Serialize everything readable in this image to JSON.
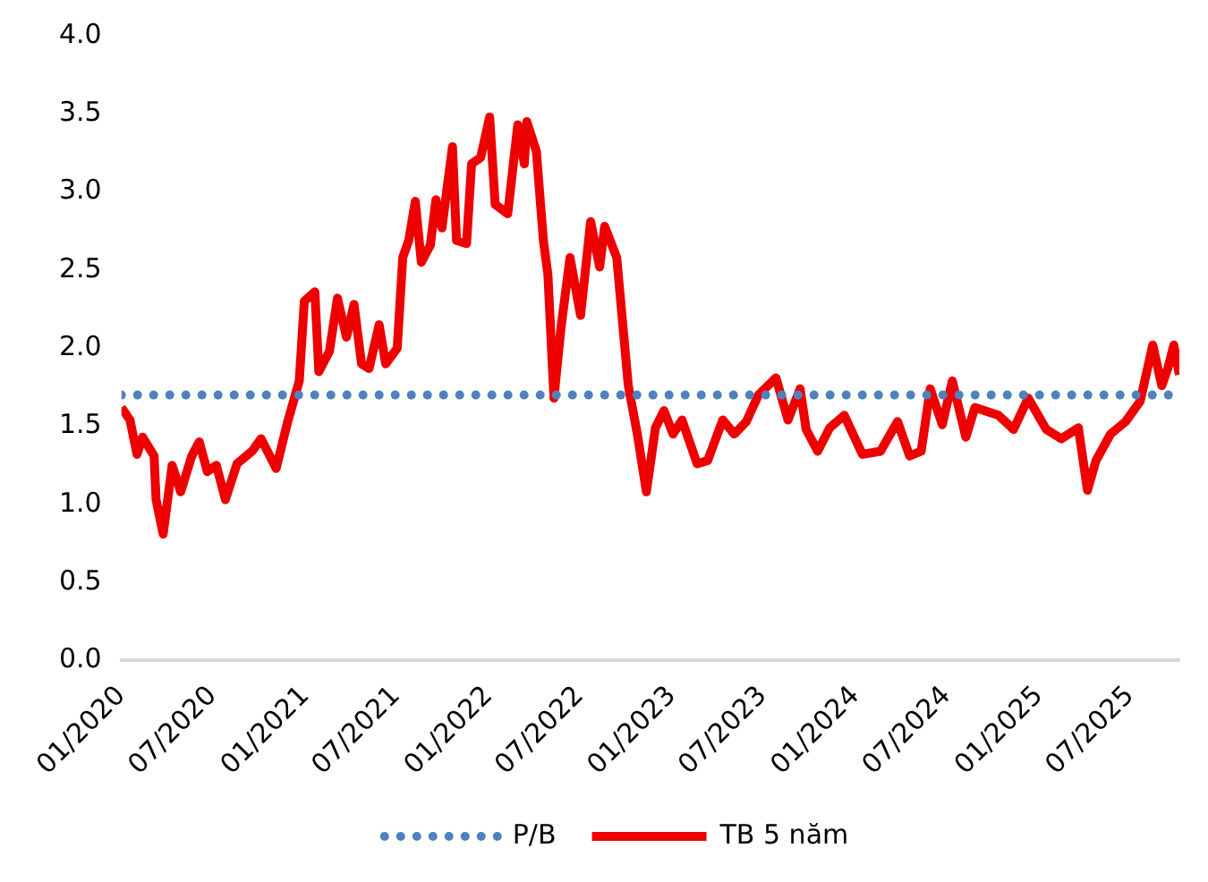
{
  "chart_data": {
    "type": "line",
    "xlim": [
      "2020-01",
      "2025-10-07"
    ],
    "xticks": [
      {
        "value": "2020-01",
        "label": "01/2020"
      },
      {
        "value": "2020-07",
        "label": "07/2020"
      },
      {
        "value": "2021-01",
        "label": "01/2021"
      },
      {
        "value": "2021-07",
        "label": "07/2021"
      },
      {
        "value": "2022-01",
        "label": "01/2022"
      },
      {
        "value": "2022-07",
        "label": "07/2022"
      },
      {
        "value": "2023-01",
        "label": "01/2023"
      },
      {
        "value": "2023-07",
        "label": "07/2023"
      },
      {
        "value": "2024-01",
        "label": "01/2024"
      },
      {
        "value": "2024-07",
        "label": "07/2024"
      },
      {
        "value": "2025-01",
        "label": "01/2025"
      },
      {
        "value": "2025-07",
        "label": "07/2025"
      }
    ],
    "ylim": [
      0,
      4
    ],
    "yticks": [
      {
        "value": 0,
        "label": "0.0"
      },
      {
        "value": 0.5,
        "label": "0.5"
      },
      {
        "value": 1,
        "label": "1.0"
      },
      {
        "value": 1.5,
        "label": "1.5"
      },
      {
        "value": 2,
        "label": "2.0"
      },
      {
        "value": 2.5,
        "label": "2.5"
      },
      {
        "value": 3,
        "label": "3.0"
      },
      {
        "value": 3.5,
        "label": "3.5"
      },
      {
        "value": 4,
        "label": "4.0"
      }
    ],
    "grid": false,
    "legend": "bottom",
    "marker": "none",
    "series": [
      {
        "name": "P/B",
        "color": "#4f81bd",
        "line_style": "dotted",
        "x": [
          "2020-01",
          "2025-10-07"
        ],
        "values": [
          1.7,
          1.7
        ]
      },
      {
        "name": "TB 5 năm",
        "color": "#ee0000",
        "line_style": "solid",
        "x": [
          "2020-01-01",
          "2020-01-18",
          "2020-02-01",
          "2020-02-12",
          "2020-03-06",
          "2020-03-10",
          "2020-03-24",
          "2020-04-11",
          "2020-04-28",
          "2020-05-20",
          "2020-06-04",
          "2020-06-20",
          "2020-07-08",
          "2020-07-26",
          "2020-08-18",
          "2020-09-17",
          "2020-10-05",
          "2020-11-04",
          "2020-11-27",
          "2020-12-20",
          "2020-12-30",
          "2021-01-20",
          "2021-01-28",
          "2021-02-18",
          "2021-03-06",
          "2021-03-24",
          "2021-04-08",
          "2021-04-23",
          "2021-05-08",
          "2021-05-28",
          "2021-06-10",
          "2021-07-03",
          "2021-07-14",
          "2021-07-26",
          "2021-08-08",
          "2021-08-20",
          "2021-09-07",
          "2021-09-18",
          "2021-09-30",
          "2021-10-21",
          "2021-10-29",
          "2021-11-18",
          "2021-11-28",
          "2021-12-16",
          "2022-01-03",
          "2022-01-14",
          "2022-02-08",
          "2022-02-28",
          "2022-03-13",
          "2022-03-18",
          "2022-04-06",
          "2022-04-20",
          "2022-04-29",
          "2022-05-11",
          "2022-05-25",
          "2022-06-12",
          "2022-07-03",
          "2022-07-23",
          "2022-08-10",
          "2022-08-20",
          "2022-09-13",
          "2022-10-06",
          "2022-10-24",
          "2022-11-11",
          "2022-11-29",
          "2022-12-16",
          "2023-01-03",
          "2023-01-21",
          "2023-02-20",
          "2023-03-13",
          "2023-04-12",
          "2023-05-05",
          "2023-05-29",
          "2023-06-22",
          "2023-07-27",
          "2023-08-20",
          "2023-09-13",
          "2023-09-25",
          "2023-10-18",
          "2023-11-11",
          "2023-12-10",
          "2024-01-15",
          "2024-02-20",
          "2024-03-25",
          "2024-04-18",
          "2024-05-11",
          "2024-05-29",
          "2024-06-22",
          "2024-07-12",
          "2024-08-08",
          "2024-08-26",
          "2024-10-12",
          "2024-11-11",
          "2024-12-10",
          "2025-01-15",
          "2025-02-14",
          "2025-03-20",
          "2025-04-07",
          "2025-04-24",
          "2025-05-23",
          "2025-06-22",
          "2025-07-21",
          "2025-08-15",
          "2025-09-02",
          "2025-09-14",
          "2025-09-26",
          "2025-10-07"
        ],
        "values": [
          1.62,
          1.54,
          1.32,
          1.43,
          1.31,
          1.03,
          0.81,
          1.25,
          1.08,
          1.31,
          1.4,
          1.21,
          1.25,
          1.03,
          1.26,
          1.34,
          1.42,
          1.23,
          1.53,
          1.79,
          2.3,
          2.36,
          1.85,
          1.98,
          2.32,
          2.07,
          2.28,
          1.9,
          1.87,
          2.15,
          1.9,
          2.0,
          2.58,
          2.69,
          2.94,
          2.55,
          2.66,
          2.95,
          2.77,
          3.29,
          2.69,
          2.67,
          3.18,
          3.22,
          3.48,
          2.92,
          2.86,
          3.43,
          3.18,
          3.45,
          3.26,
          2.69,
          2.47,
          1.68,
          2.13,
          2.58,
          2.21,
          2.81,
          2.52,
          2.78,
          2.58,
          1.76,
          1.45,
          1.08,
          1.49,
          1.6,
          1.45,
          1.54,
          1.26,
          1.28,
          1.54,
          1.45,
          1.53,
          1.7,
          1.81,
          1.54,
          1.74,
          1.48,
          1.34,
          1.49,
          1.57,
          1.32,
          1.34,
          1.53,
          1.31,
          1.34,
          1.74,
          1.51,
          1.79,
          1.43,
          1.62,
          1.57,
          1.48,
          1.68,
          1.48,
          1.42,
          1.49,
          1.09,
          1.28,
          1.45,
          1.53,
          1.66,
          2.02,
          1.76,
          1.87,
          2.02,
          1.83
        ]
      }
    ]
  }
}
